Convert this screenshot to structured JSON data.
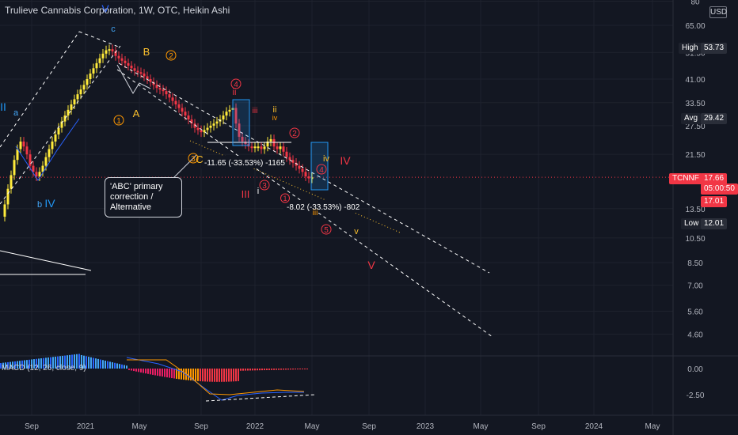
{
  "header": {
    "title": "Trulieve Cannabis Corporation, 1W, OTC, Heikin Ashi",
    "currency": "USD"
  },
  "chart_data": {
    "type": "candlestick",
    "scale": "log",
    "price_axis_ticks": [
      "80",
      "65.00",
      "51.50",
      "41.00",
      "33.50",
      "27.50",
      "21.50",
      "13.50",
      "10.50",
      "8.50",
      "7.00",
      "5.60",
      "4.60"
    ],
    "time_axis_ticks": [
      "Sep",
      "2021",
      "May",
      "Sep",
      "2022",
      "May",
      "Sep",
      "2023",
      "May",
      "Sep",
      "2024",
      "May"
    ],
    "macd_axis_ticks": [
      "0.00",
      "-2.50"
    ],
    "symbol": "TCNNF",
    "last_price": "17.66",
    "countdown": "05:00:50",
    "prev_close": "17.01",
    "high": {
      "label": "High",
      "value": "53.73"
    },
    "avg": {
      "label": "Avg",
      "value": "29.42"
    },
    "low": {
      "label": "Low",
      "value": "12.01"
    },
    "indicator_label": "MACD (12, 26, close, 9)",
    "measurements": [
      {
        "text": "-11.65 (-33.53%) -1165"
      },
      {
        "text": "-8.02 (-33.53%) -802"
      }
    ],
    "callout": "'ABC' primary correction / Alternative",
    "wave_labels": [
      {
        "text": "V",
        "color": "#2962ff"
      },
      {
        "text": "c",
        "color": "#42a5f5"
      },
      {
        "text": "B",
        "color": "#fbc02d"
      },
      {
        "text": "A",
        "color": "#fbc02d"
      },
      {
        "text": "C",
        "color": "#fbc02d"
      },
      {
        "text": "II",
        "color": "#2196f3"
      },
      {
        "text": "a",
        "color": "#42a5f5"
      },
      {
        "text": "b",
        "color": "#42a5f5"
      },
      {
        "text": "IV",
        "color": "#2196f3"
      },
      {
        "text": "ii",
        "color": "#f23645"
      },
      {
        "text": "ii",
        "color": "#fbc02d"
      },
      {
        "text": "iv",
        "color": "#ff9800"
      },
      {
        "text": "iv",
        "color": "#fbc02d"
      },
      {
        "text": "IV",
        "color": "#f23645"
      },
      {
        "text": "III",
        "color": "#f23645"
      },
      {
        "text": "i",
        "color": "#ffffff"
      },
      {
        "text": "iii",
        "color": "#ff9800"
      },
      {
        "text": "v",
        "color": "#fbc02d"
      },
      {
        "text": "V",
        "color": "#f23645"
      },
      {
        "text": "1",
        "color": "#ff9800"
      },
      {
        "text": "2",
        "color": "#ff9800"
      },
      {
        "text": "3",
        "color": "#ff9800"
      },
      {
        "text": "4",
        "color": "#f23645"
      },
      {
        "text": "2",
        "color": "#f23645"
      },
      {
        "text": "4",
        "color": "#f23645"
      },
      {
        "text": "3",
        "color": "#f23645"
      },
      {
        "text": "5",
        "color": "#f23645"
      },
      {
        "text": "iii",
        "color": "#f23645"
      },
      {
        "text": "1",
        "color": "#f23645"
      }
    ],
    "colors": {
      "background": "#131722",
      "bull": "#ffeb3b",
      "bear": "#f23645",
      "macd_line": "#2962ff",
      "signal_line": "#ff9800",
      "last_price": "#f23645"
    }
  }
}
